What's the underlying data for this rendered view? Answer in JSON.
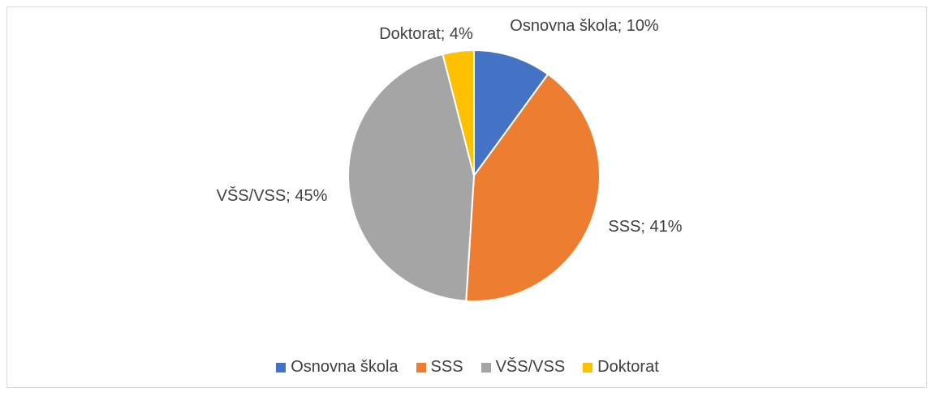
{
  "chart_data": {
    "type": "pie",
    "categories": [
      "Osnovna škola",
      "SSS",
      "VŠS/VSS",
      "Doktorat"
    ],
    "values": [
      10,
      41,
      45,
      4
    ],
    "value_labels": [
      "Osnovna škola; 10%",
      "SSS; 41%",
      "VŠS/VSS; 45%",
      "Doktorat; 4%"
    ],
    "colors": [
      "#4472c4",
      "#ed7d31",
      "#a5a5a5",
      "#ffc000"
    ],
    "legend": "bottom"
  }
}
